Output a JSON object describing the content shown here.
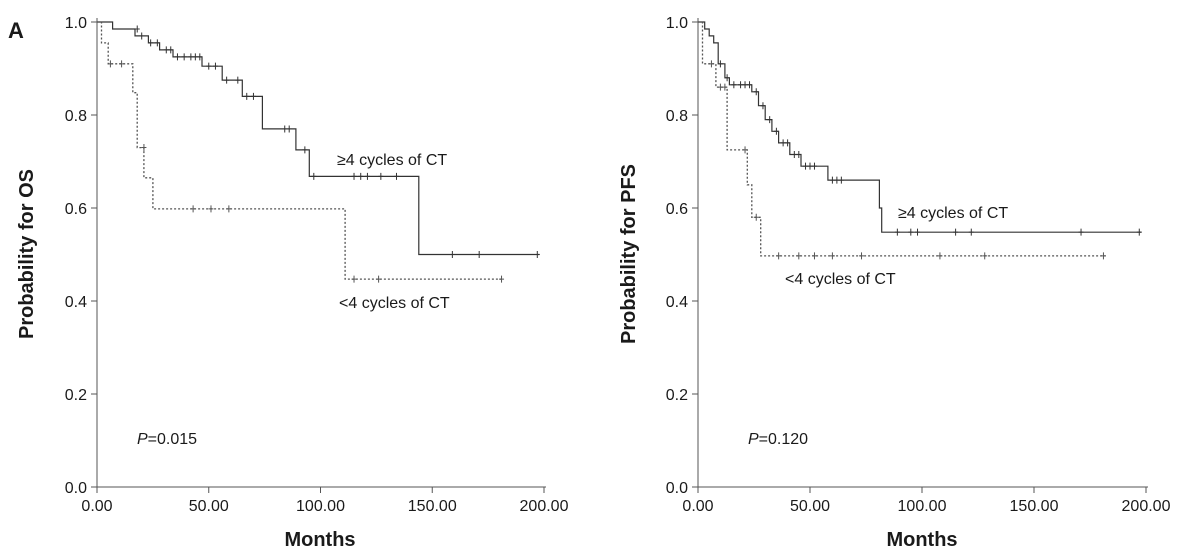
{
  "panel_letter": "A",
  "chart_data": [
    {
      "type": "line",
      "subtype": "kaplan-meier",
      "xlabel": "Months",
      "ylabel": "Probability for OS",
      "xlim": [
        0,
        200
      ],
      "ylim": [
        0,
        1
      ],
      "xticks": [
        "0.00",
        "50.00",
        "100.00",
        "150.00",
        "200.00"
      ],
      "yticks": [
        "0.0",
        "0.2",
        "0.4",
        "0.6",
        "0.8",
        "1.0"
      ],
      "grid": false,
      "annotation": {
        "prefix": "P",
        "value": "=0.015"
      },
      "series": [
        {
          "name": "≥4 cycles of CT",
          "style": "solid",
          "steps": [
            [
              0,
              1.0
            ],
            [
              7,
              1.0
            ],
            [
              7,
              0.985
            ],
            [
              17,
              0.985
            ],
            [
              17,
              0.97
            ],
            [
              23,
              0.97
            ],
            [
              23,
              0.955
            ],
            [
              28,
              0.955
            ],
            [
              28,
              0.94
            ],
            [
              34,
              0.94
            ],
            [
              34,
              0.925
            ],
            [
              47,
              0.925
            ],
            [
              47,
              0.905
            ],
            [
              56,
              0.905
            ],
            [
              56,
              0.875
            ],
            [
              65,
              0.875
            ],
            [
              65,
              0.84
            ],
            [
              74,
              0.84
            ],
            [
              74,
              0.77
            ],
            [
              89,
              0.77
            ],
            [
              89,
              0.725
            ],
            [
              95,
              0.725
            ],
            [
              95,
              0.668
            ],
            [
              144,
              0.668
            ],
            [
              144,
              0.5
            ],
            [
              198,
              0.5
            ]
          ],
          "censored": [
            [
              18,
              0.985
            ],
            [
              20,
              0.97
            ],
            [
              24,
              0.955
            ],
            [
              27,
              0.955
            ],
            [
              31,
              0.94
            ],
            [
              33,
              0.94
            ],
            [
              36,
              0.925
            ],
            [
              39,
              0.925
            ],
            [
              42,
              0.925
            ],
            [
              44,
              0.925
            ],
            [
              46,
              0.925
            ],
            [
              50,
              0.905
            ],
            [
              53,
              0.905
            ],
            [
              58,
              0.875
            ],
            [
              63,
              0.875
            ],
            [
              67,
              0.84
            ],
            [
              70,
              0.84
            ],
            [
              84,
              0.77
            ],
            [
              86,
              0.77
            ],
            [
              93,
              0.725
            ],
            [
              97,
              0.668
            ],
            [
              115,
              0.668
            ],
            [
              118,
              0.668
            ],
            [
              121,
              0.668
            ],
            [
              127,
              0.668
            ],
            [
              134,
              0.668
            ],
            [
              159,
              0.5
            ],
            [
              171,
              0.5
            ],
            [
              197,
              0.5
            ]
          ]
        },
        {
          "name": "<4 cycles of CT",
          "style": "dotted",
          "steps": [
            [
              0,
              1.0
            ],
            [
              2,
              1.0
            ],
            [
              2,
              0.955
            ],
            [
              5,
              0.955
            ],
            [
              5,
              0.91
            ],
            [
              16,
              0.91
            ],
            [
              16,
              0.848
            ],
            [
              18,
              0.848
            ],
            [
              18,
              0.73
            ],
            [
              21,
              0.73
            ],
            [
              21,
              0.665
            ],
            [
              25,
              0.665
            ],
            [
              25,
              0.598
            ],
            [
              111,
              0.598
            ],
            [
              111,
              0.447
            ],
            [
              182,
              0.447
            ]
          ],
          "censored": [
            [
              6,
              0.91
            ],
            [
              11,
              0.91
            ],
            [
              21,
              0.73
            ],
            [
              43,
              0.598
            ],
            [
              51,
              0.598
            ],
            [
              59,
              0.598
            ],
            [
              115,
              0.447
            ],
            [
              126,
              0.447
            ],
            [
              181,
              0.447
            ]
          ]
        }
      ]
    },
    {
      "type": "line",
      "subtype": "kaplan-meier",
      "xlabel": "Months",
      "ylabel": "Probability for PFS",
      "xlim": [
        0,
        200
      ],
      "ylim": [
        0,
        1
      ],
      "xticks": [
        "0.00",
        "50.00",
        "100.00",
        "150.00",
        "200.00"
      ],
      "yticks": [
        "0.0",
        "0.2",
        "0.4",
        "0.6",
        "0.8",
        "1.0"
      ],
      "grid": false,
      "annotation": {
        "prefix": "P",
        "value": "=0.120"
      },
      "series": [
        {
          "name": "≥4 cycles of CT",
          "style": "solid",
          "steps": [
            [
              0,
              1.0
            ],
            [
              3,
              1.0
            ],
            [
              3,
              0.985
            ],
            [
              5,
              0.985
            ],
            [
              5,
              0.97
            ],
            [
              7,
              0.97
            ],
            [
              7,
              0.955
            ],
            [
              9,
              0.955
            ],
            [
              9,
              0.91
            ],
            [
              12,
              0.91
            ],
            [
              12,
              0.88
            ],
            [
              14,
              0.88
            ],
            [
              14,
              0.865
            ],
            [
              24,
              0.865
            ],
            [
              24,
              0.85
            ],
            [
              27,
              0.85
            ],
            [
              27,
              0.82
            ],
            [
              30,
              0.82
            ],
            [
              30,
              0.79
            ],
            [
              33,
              0.79
            ],
            [
              33,
              0.765
            ],
            [
              36,
              0.765
            ],
            [
              36,
              0.74
            ],
            [
              41,
              0.74
            ],
            [
              41,
              0.715
            ],
            [
              46,
              0.715
            ],
            [
              46,
              0.69
            ],
            [
              58,
              0.69
            ],
            [
              58,
              0.66
            ],
            [
              81,
              0.66
            ],
            [
              81,
              0.6
            ],
            [
              82,
              0.6
            ],
            [
              82,
              0.548
            ],
            [
              198,
              0.548
            ]
          ],
          "censored": [
            [
              10,
              0.91
            ],
            [
              13,
              0.88
            ],
            [
              16,
              0.865
            ],
            [
              19,
              0.865
            ],
            [
              21,
              0.865
            ],
            [
              23,
              0.865
            ],
            [
              26,
              0.85
            ],
            [
              29,
              0.82
            ],
            [
              32,
              0.79
            ],
            [
              35,
              0.765
            ],
            [
              38,
              0.74
            ],
            [
              40,
              0.74
            ],
            [
              43,
              0.715
            ],
            [
              45,
              0.715
            ],
            [
              48,
              0.69
            ],
            [
              50,
              0.69
            ],
            [
              52,
              0.69
            ],
            [
              60,
              0.66
            ],
            [
              62,
              0.66
            ],
            [
              64,
              0.66
            ],
            [
              89,
              0.548
            ],
            [
              95,
              0.548
            ],
            [
              98,
              0.548
            ],
            [
              115,
              0.548
            ],
            [
              122,
              0.548
            ],
            [
              171,
              0.548
            ],
            [
              197,
              0.548
            ]
          ]
        },
        {
          "name": "<4 cycles of CT",
          "style": "dotted",
          "steps": [
            [
              0,
              1.0
            ],
            [
              2,
              1.0
            ],
            [
              2,
              0.91
            ],
            [
              8,
              0.91
            ],
            [
              8,
              0.86
            ],
            [
              13,
              0.86
            ],
            [
              13,
              0.725
            ],
            [
              22,
              0.725
            ],
            [
              22,
              0.65
            ],
            [
              24,
              0.65
            ],
            [
              24,
              0.58
            ],
            [
              28,
              0.58
            ],
            [
              28,
              0.497
            ],
            [
              182,
              0.497
            ]
          ],
          "censored": [
            [
              6,
              0.91
            ],
            [
              10,
              0.86
            ],
            [
              12,
              0.86
            ],
            [
              21,
              0.725
            ],
            [
              26,
              0.58
            ],
            [
              36,
              0.497
            ],
            [
              45,
              0.497
            ],
            [
              52,
              0.497
            ],
            [
              60,
              0.497
            ],
            [
              73,
              0.497
            ],
            [
              108,
              0.497
            ],
            [
              128,
              0.497
            ],
            [
              181,
              0.497
            ]
          ]
        }
      ]
    }
  ]
}
